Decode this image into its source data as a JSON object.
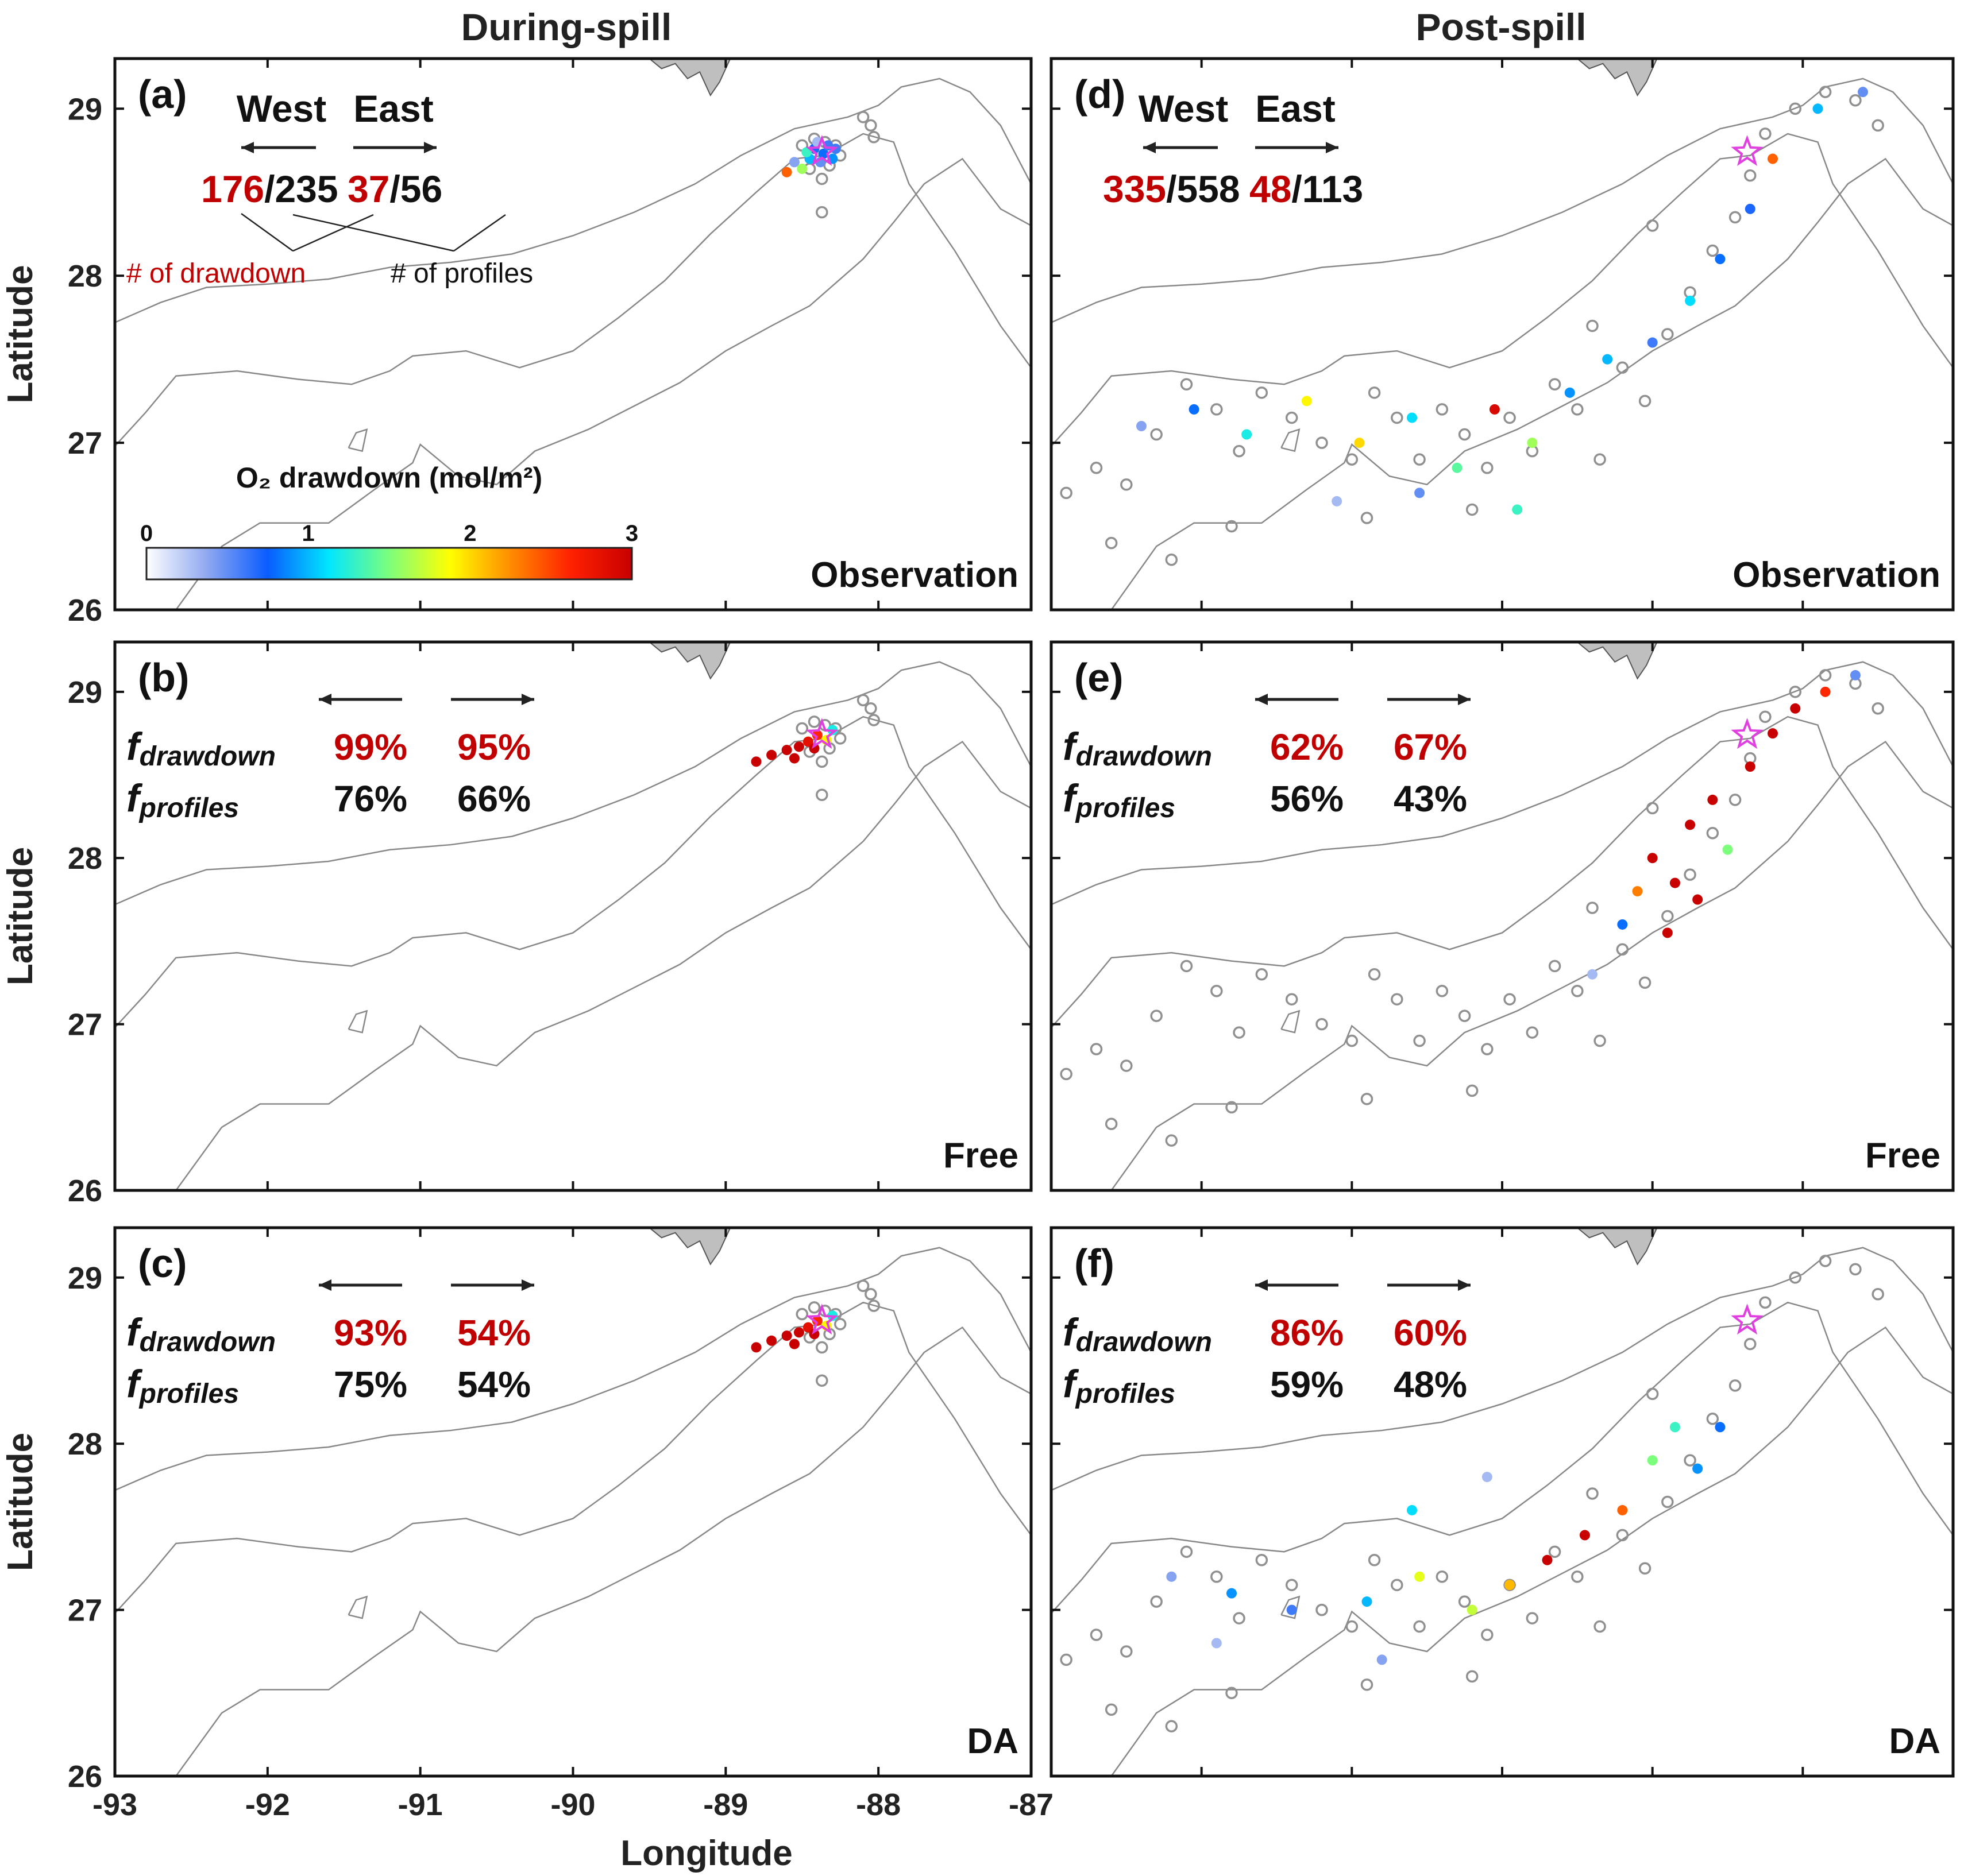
{
  "columns": {
    "left": "During-spill",
    "right": "Post-spill"
  },
  "axes": {
    "xlabel": "Longitude",
    "ylabel": "Latitude",
    "xticks": [
      "-93",
      "-92",
      "-91",
      "-90",
      "-89",
      "-88",
      "-87"
    ],
    "yticks": [
      "26",
      "27",
      "28",
      "29"
    ],
    "xlim": [
      -93,
      -87
    ],
    "ylim": [
      26,
      29.3
    ]
  },
  "colorbar": {
    "title": "O₂ drawdown (mol/m²)",
    "ticks": [
      "0",
      "1",
      "2",
      "3"
    ],
    "range": [
      0,
      3
    ],
    "colormap": [
      "#ffffff",
      "#8fa8f0",
      "#0a5cff",
      "#00e6ff",
      "#7cff7c",
      "#ffff00",
      "#ff8c00",
      "#ff2000",
      "#c80000"
    ]
  },
  "colors": {
    "red_text": "#c00000",
    "land": "#bfbfbf",
    "contour": "#888888",
    "wellhead": "#e040e0",
    "unsampled_marker": "#909090"
  },
  "legend_note": {
    "drawdown": "# of drawdown",
    "profiles": "# of profiles"
  },
  "panels": [
    {
      "id": "a",
      "label": "(a)",
      "kind": "Observation",
      "type": "obs",
      "west_word": "West",
      "east_word": "East",
      "west_num": "176",
      "west_den": "/235",
      "east_num": "37",
      "east_den": "/56"
    },
    {
      "id": "b",
      "label": "(b)",
      "kind": "Free",
      "type": "model",
      "f_drawdown_main": "f",
      "f_drawdown_sub": "drawdown",
      "f_profiles_main": "f",
      "f_profiles_sub": "profiles",
      "west_drawdown": "99%",
      "east_drawdown": "95%",
      "west_profiles": "76%",
      "east_profiles": "66%"
    },
    {
      "id": "c",
      "label": "(c)",
      "kind": "DA",
      "type": "model",
      "f_drawdown_main": "f",
      "f_drawdown_sub": "drawdown",
      "f_profiles_main": "f",
      "f_profiles_sub": "profiles",
      "west_drawdown": "93%",
      "east_drawdown": "54%",
      "west_profiles": "75%",
      "east_profiles": "54%"
    },
    {
      "id": "d",
      "label": "(d)",
      "kind": "Observation",
      "type": "obs",
      "west_word": "West",
      "east_word": "East",
      "west_num": "335",
      "west_den": "/558",
      "east_num": "48",
      "east_den": "/113"
    },
    {
      "id": "e",
      "label": "(e)",
      "kind": "Free",
      "type": "model",
      "f_drawdown_main": "f",
      "f_drawdown_sub": "drawdown",
      "f_profiles_main": "f",
      "f_profiles_sub": "profiles",
      "west_drawdown": "62%",
      "east_drawdown": "67%",
      "west_profiles": "56%",
      "east_profiles": "43%"
    },
    {
      "id": "f",
      "label": "(f)",
      "kind": "DA",
      "type": "model",
      "f_drawdown_main": "f",
      "f_drawdown_sub": "drawdown",
      "f_profiles_main": "f",
      "f_profiles_sub": "profiles",
      "west_drawdown": "86%",
      "east_drawdown": "60%",
      "west_profiles": "59%",
      "east_profiles": "48%"
    }
  ],
  "map_data": {
    "wellhead": {
      "lon": -88.37,
      "lat": 28.74
    },
    "coast": [
      [
        -89.5,
        29.3
      ],
      [
        -89.42,
        29.24
      ],
      [
        -89.33,
        29.27
      ],
      [
        -89.25,
        29.18
      ],
      [
        -89.17,
        29.22
      ],
      [
        -89.1,
        29.08
      ],
      [
        -89.04,
        29.16
      ],
      [
        -88.97,
        29.3
      ]
    ],
    "contour_shelf": [
      [
        -93,
        27.72
      ],
      [
        -92.7,
        27.84
      ],
      [
        -92.4,
        27.93
      ],
      [
        -92.0,
        27.95
      ],
      [
        -91.6,
        27.98
      ],
      [
        -91.2,
        28.05
      ],
      [
        -90.8,
        28.08
      ],
      [
        -90.4,
        28.13
      ],
      [
        -90.0,
        28.24
      ],
      [
        -89.6,
        28.38
      ],
      [
        -89.2,
        28.55
      ],
      [
        -88.9,
        28.72
      ],
      [
        -88.55,
        28.88
      ],
      [
        -88.2,
        28.95
      ],
      [
        -88.0,
        29.02
      ],
      [
        -87.85,
        29.13
      ],
      [
        -87.6,
        29.18
      ],
      [
        -87.4,
        29.1
      ],
      [
        -87.2,
        28.9
      ],
      [
        -87.0,
        28.55
      ]
    ],
    "contour_mid": [
      [
        -93,
        26.98
      ],
      [
        -92.8,
        27.18
      ],
      [
        -92.6,
        27.4
      ],
      [
        -92.2,
        27.43
      ],
      [
        -91.8,
        27.38
      ],
      [
        -91.45,
        27.35
      ],
      [
        -91.2,
        27.43
      ],
      [
        -91.05,
        27.52
      ],
      [
        -90.7,
        27.55
      ],
      [
        -90.35,
        27.45
      ],
      [
        -90.0,
        27.55
      ],
      [
        -89.7,
        27.75
      ],
      [
        -89.4,
        27.97
      ],
      [
        -89.1,
        28.25
      ],
      [
        -88.8,
        28.5
      ],
      [
        -88.55,
        28.7
      ],
      [
        -88.35,
        28.72
      ],
      [
        -88.1,
        28.85
      ],
      [
        -87.9,
        28.8
      ],
      [
        -87.8,
        28.55
      ],
      [
        -87.5,
        28.15
      ],
      [
        -87.2,
        27.7
      ],
      [
        -87.0,
        27.45
      ]
    ],
    "contour_deep": [
      [
        -92.6,
        26.0
      ],
      [
        -92.3,
        26.38
      ],
      [
        -92.05,
        26.52
      ],
      [
        -91.6,
        26.52
      ],
      [
        -91.3,
        26.72
      ],
      [
        -91.05,
        26.88
      ],
      [
        -91.0,
        26.99
      ],
      [
        -90.75,
        26.8
      ],
      [
        -90.5,
        26.75
      ],
      [
        -90.25,
        26.95
      ],
      [
        -89.9,
        27.08
      ],
      [
        -89.6,
        27.22
      ],
      [
        -89.3,
        27.36
      ],
      [
        -89.0,
        27.55
      ],
      [
        -88.7,
        27.7
      ],
      [
        -88.45,
        27.82
      ],
      [
        -88.1,
        28.1
      ],
      [
        -87.9,
        28.32
      ],
      [
        -87.7,
        28.55
      ],
      [
        -87.45,
        28.7
      ],
      [
        -87.2,
        28.4
      ],
      [
        -87.0,
        28.3
      ]
    ],
    "contour_island": [
      [
        -91.47,
        26.97
      ],
      [
        -91.42,
        27.06
      ],
      [
        -91.35,
        27.08
      ],
      [
        -91.38,
        26.95
      ],
      [
        -91.47,
        26.97
      ]
    ],
    "during_obs_points": [
      [
        -88.42,
        28.76,
        0.7
      ],
      [
        -88.36,
        28.73,
        0.8
      ],
      [
        -88.33,
        28.78,
        0.6
      ],
      [
        -88.45,
        28.7,
        1.0
      ],
      [
        -88.38,
        28.68,
        0.5
      ],
      [
        -88.3,
        28.7,
        0.9
      ],
      [
        -88.47,
        28.74,
        1.3
      ],
      [
        -88.55,
        28.68,
        0.4
      ],
      [
        -88.6,
        28.62,
        2.4
      ],
      [
        -88.5,
        28.64,
        1.6
      ],
      [
        -88.4,
        28.8,
        0.3
      ],
      [
        -88.28,
        28.76,
        0.6
      ]
    ],
    "during_model_points": [
      [
        -88.7,
        28.62,
        3
      ],
      [
        -88.6,
        28.65,
        3
      ],
      [
        -88.52,
        28.67,
        3
      ],
      [
        -88.46,
        28.7,
        2.8
      ],
      [
        -88.4,
        28.74,
        2.6
      ],
      [
        -88.34,
        28.71,
        1.9
      ],
      [
        -88.3,
        28.77,
        1.2
      ],
      [
        -88.8,
        28.58,
        3
      ],
      [
        -88.55,
        28.6,
        3
      ],
      [
        -88.42,
        28.66,
        3
      ]
    ],
    "during_rings": [
      [
        -88.42,
        28.82
      ],
      [
        -88.35,
        28.8
      ],
      [
        -88.28,
        28.78
      ],
      [
        -88.25,
        28.72
      ],
      [
        -88.32,
        28.66
      ],
      [
        -88.45,
        28.64
      ],
      [
        -88.5,
        28.78
      ],
      [
        -88.37,
        28.58
      ],
      [
        -88.1,
        28.95
      ],
      [
        -88.05,
        28.9
      ],
      [
        -88.03,
        28.83
      ],
      [
        -88.37,
        28.38
      ]
    ],
    "post_rings": [
      [
        -92.9,
        26.7
      ],
      [
        -92.7,
        26.85
      ],
      [
        -92.5,
        26.75
      ],
      [
        -92.3,
        27.05
      ],
      [
        -92.1,
        27.35
      ],
      [
        -91.9,
        27.2
      ],
      [
        -91.75,
        26.95
      ],
      [
        -91.6,
        27.3
      ],
      [
        -91.4,
        27.15
      ],
      [
        -91.2,
        27.0
      ],
      [
        -91.0,
        26.9
      ],
      [
        -90.85,
        27.3
      ],
      [
        -90.7,
        27.15
      ],
      [
        -90.55,
        26.9
      ],
      [
        -90.4,
        27.2
      ],
      [
        -90.25,
        27.05
      ],
      [
        -90.1,
        26.85
      ],
      [
        -89.95,
        27.15
      ],
      [
        -89.8,
        26.95
      ],
      [
        -89.65,
        27.35
      ],
      [
        -89.5,
        27.2
      ],
      [
        -89.35,
        26.9
      ],
      [
        -89.2,
        27.45
      ],
      [
        -89.05,
        27.25
      ],
      [
        -88.9,
        27.65
      ],
      [
        -88.75,
        27.9
      ],
      [
        -88.6,
        28.15
      ],
      [
        -88.45,
        28.35
      ],
      [
        -88.35,
        28.6
      ],
      [
        -88.25,
        28.85
      ],
      [
        -88.05,
        29.0
      ],
      [
        -87.85,
        29.1
      ],
      [
        -87.65,
        29.05
      ],
      [
        -87.5,
        28.9
      ],
      [
        -89.0,
        28.3
      ],
      [
        -89.4,
        27.7
      ],
      [
        -92.6,
        26.4
      ],
      [
        -92.2,
        26.3
      ],
      [
        -91.8,
        26.5
      ],
      [
        -90.9,
        26.55
      ],
      [
        -90.2,
        26.6
      ]
    ],
    "post_obs_points": [
      [
        -92.4,
        27.1,
        0.4
      ],
      [
        -92.05,
        27.2,
        0.8
      ],
      [
        -91.7,
        27.05,
        1.2
      ],
      [
        -91.3,
        27.25,
        1.9
      ],
      [
        -90.95,
        27.0,
        2.0
      ],
      [
        -90.6,
        27.15,
        1.1
      ],
      [
        -90.3,
        26.85,
        1.4
      ],
      [
        -90.05,
        27.2,
        2.9
      ],
      [
        -89.8,
        27.0,
        1.6
      ],
      [
        -89.55,
        27.3,
        0.9
      ],
      [
        -89.3,
        27.5,
        1.0
      ],
      [
        -89.0,
        27.6,
        0.6
      ],
      [
        -88.75,
        27.85,
        1.1
      ],
      [
        -88.55,
        28.1,
        0.8
      ],
      [
        -88.35,
        28.4,
        0.7
      ],
      [
        -88.2,
        28.7,
        2.4
      ],
      [
        -87.9,
        29.0,
        1.0
      ],
      [
        -87.6,
        29.1,
        0.5
      ],
      [
        -89.9,
        26.6,
        1.3
      ],
      [
        -90.55,
        26.7,
        0.5
      ],
      [
        -91.1,
        26.65,
        0.3
      ]
    ],
    "post_free_points": [
      [
        -89.0,
        28.0,
        3
      ],
      [
        -88.85,
        27.85,
        3
      ],
      [
        -88.75,
        28.2,
        3
      ],
      [
        -88.6,
        28.35,
        3
      ],
      [
        -88.5,
        28.05,
        1.5
      ],
      [
        -88.35,
        28.55,
        3
      ],
      [
        -88.2,
        28.75,
        3
      ],
      [
        -88.05,
        28.9,
        3
      ],
      [
        -87.85,
        29.0,
        2.6
      ],
      [
        -87.65,
        29.1,
        0.5
      ],
      [
        -89.2,
        27.6,
        0.8
      ],
      [
        -89.4,
        27.3,
        0.3
      ],
      [
        -88.9,
        27.55,
        3
      ],
      [
        -88.7,
        27.75,
        3
      ],
      [
        -89.1,
        27.8,
        2.3
      ]
    ],
    "post_da_points": [
      [
        -92.2,
        27.2,
        0.4
      ],
      [
        -91.8,
        27.1,
        0.9
      ],
      [
        -91.4,
        27.0,
        0.6
      ],
      [
        -90.9,
        27.05,
        1.0
      ],
      [
        -90.55,
        27.2,
        1.8
      ],
      [
        -90.2,
        27.0,
        1.7
      ],
      [
        -89.95,
        27.15,
        2.1
      ],
      [
        -89.7,
        27.3,
        3
      ],
      [
        -89.45,
        27.45,
        3
      ],
      [
        -89.2,
        27.6,
        2.4
      ],
      [
        -89.0,
        27.9,
        1.5
      ],
      [
        -88.85,
        28.1,
        1.3
      ],
      [
        -88.7,
        27.85,
        0.9
      ],
      [
        -88.55,
        28.1,
        0.8
      ],
      [
        -90.6,
        27.6,
        1.1
      ],
      [
        -90.1,
        27.8,
        0.3
      ],
      [
        -90.8,
        26.7,
        0.4
      ],
      [
        -91.9,
        26.8,
        0.3
      ]
    ]
  }
}
